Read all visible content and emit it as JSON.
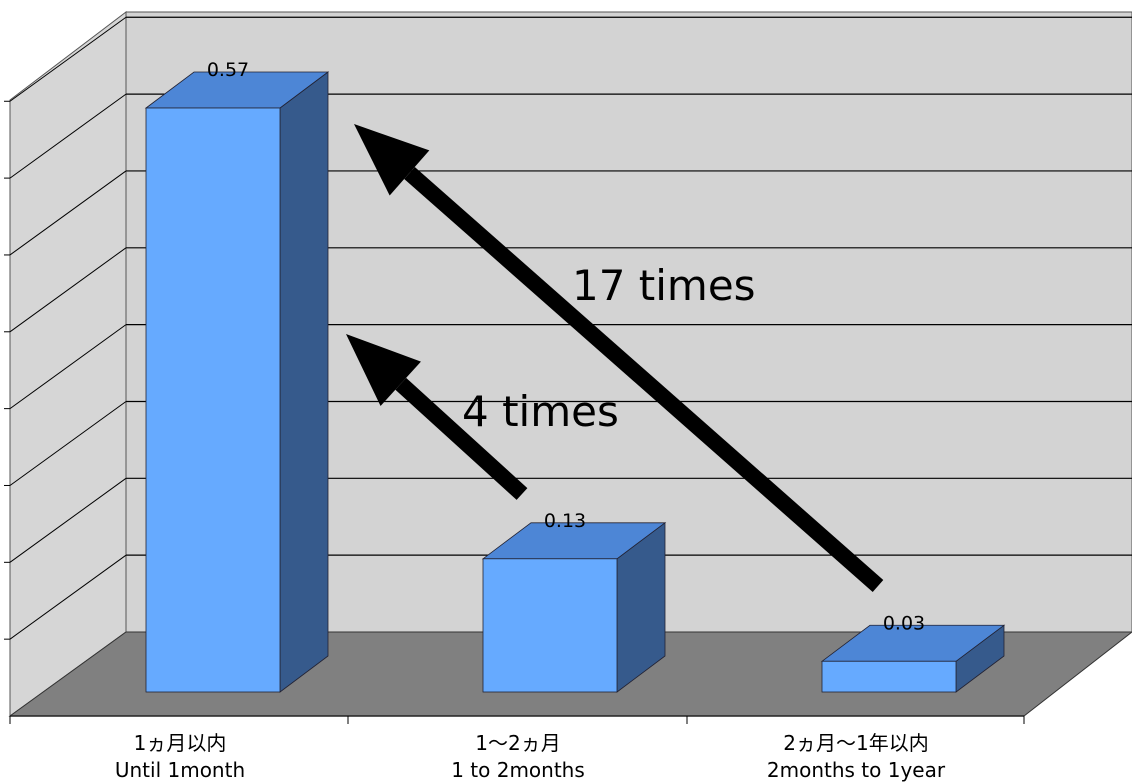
{
  "chart_data": {
    "type": "bar",
    "categories": [
      {
        "ja": "1ヵ月以内",
        "en": "Until 1month"
      },
      {
        "ja": "1〜2ヵ月",
        "en": "1 to 2months"
      },
      {
        "ja": "2ヵ月〜1年以内",
        "en": "2months to 1year"
      }
    ],
    "values": [
      0.57,
      0.13,
      0.03
    ],
    "value_labels": [
      "0.57",
      "0.13",
      "0.03"
    ],
    "ylim": [
      0,
      0.6
    ],
    "grid": true,
    "annotations": [
      {
        "text": "4 times",
        "from_category": 1,
        "to_category": 0
      },
      {
        "text": "17 times",
        "from_category": 2,
        "to_category": 0
      }
    ],
    "colors": {
      "bar_front": "#66aaff",
      "bar_top": "#4d86d6",
      "bar_side": "#365a8c",
      "back_wall": "#d3d3d3",
      "floor": "#808080",
      "arrow": "#000000"
    }
  }
}
